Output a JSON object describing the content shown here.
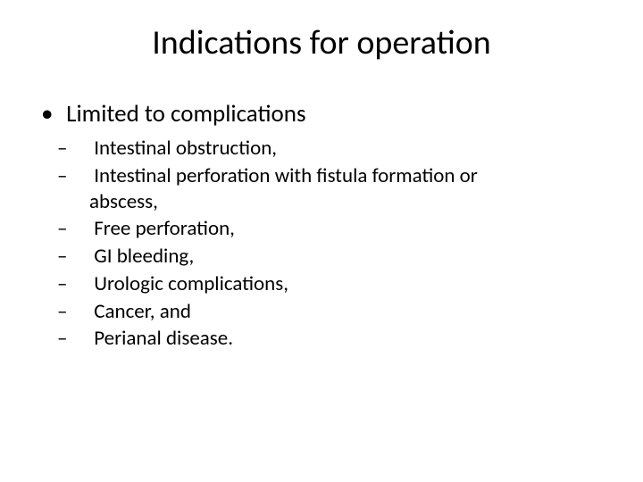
{
  "title": "Indications for operation",
  "level1": {
    "item0": "Limited to complications"
  },
  "level2": {
    "item0": "Intestinal obstruction,",
    "item1": "Intestinal perforation with fistula formation or abscess,",
    "item2": "Free perforation,",
    "item3": "GI bleeding,",
    "item4": "Urologic complications,",
    "item5": "Cancer, and",
    "item6": "Perianal disease."
  }
}
